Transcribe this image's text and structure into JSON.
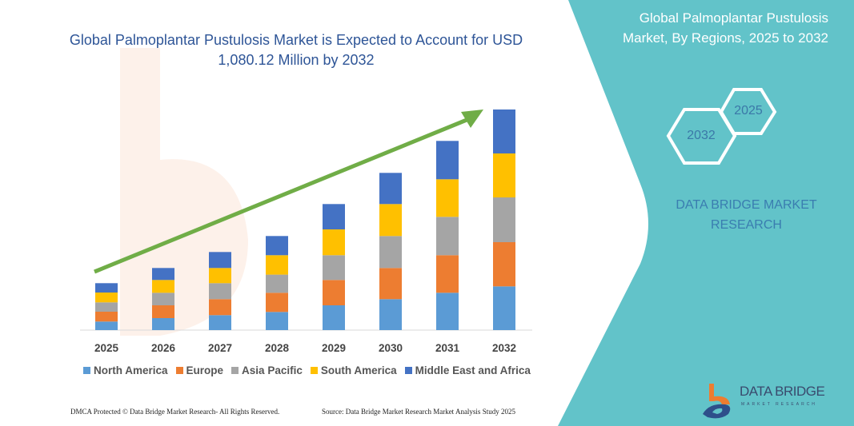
{
  "header": {
    "title": "Global Palmoplantar Pustulosis Market is Expected to Account for USD 1,080.12 Million by 2032"
  },
  "panel": {
    "title": "Global Palmoplantar Pustulosis Market, By Regions, 2025 to 2032",
    "hex_start": "2025",
    "hex_end": "2032",
    "brand": "DATA BRIDGE MARKET RESEARCH",
    "bg_color": "#62c3c9"
  },
  "logo": {
    "name": "DATA BRIDGE",
    "tagline": "MARKET RESEARCH"
  },
  "footer": {
    "left": "DMCA Protected © Data Bridge Market Research- All Rights Reserved.",
    "right": "Source: Data Bridge Market Research Market Analysis Study 2025"
  },
  "chart_data": {
    "type": "bar",
    "stacked": true,
    "y_axis_shown": false,
    "grid": false,
    "legend_position": "bottom",
    "trend_arrow_color": "#70ad47",
    "categories": [
      "2025",
      "2026",
      "2027",
      "2028",
      "2029",
      "2030",
      "2031",
      "2032"
    ],
    "series": [
      {
        "name": "North America",
        "color": "#5b9bd5",
        "values": [
          10.7,
          15,
          18.7,
          22.7,
          31,
          38.7,
          46.7,
          54.7
        ]
      },
      {
        "name": "Europe",
        "color": "#ed7d31",
        "values": [
          12.3,
          16,
          20,
          24,
          31.7,
          39,
          47,
          55.3
        ]
      },
      {
        "name": "Asia Pacific",
        "color": "#a5a5a5",
        "values": [
          11.7,
          15.7,
          20,
          22.7,
          31,
          40,
          48,
          56
        ]
      },
      {
        "name": "South America",
        "color": "#ffc000",
        "values": [
          12.3,
          16,
          19,
          24.3,
          32.3,
          40,
          47,
          55
        ]
      },
      {
        "name": "Middle East and Africa",
        "color": "#4472c4",
        "values": [
          11.7,
          15,
          20,
          24,
          31.7,
          39,
          48,
          55
        ]
      }
    ]
  }
}
